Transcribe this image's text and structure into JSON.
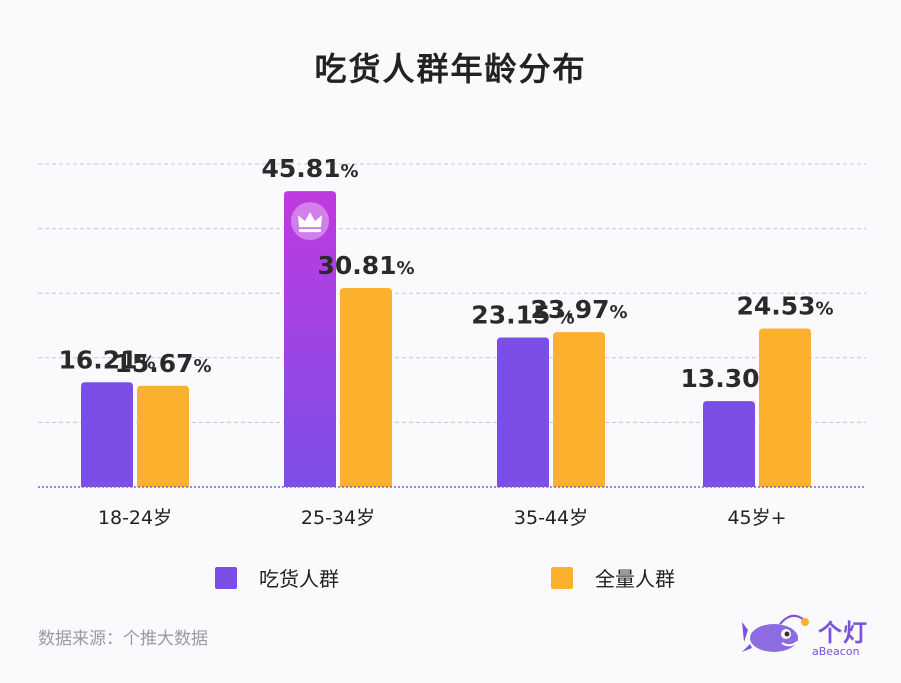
{
  "title": "吃货人群年龄分布",
  "source": "数据来源：个推大数据",
  "brand": {
    "logo_text": "个灯",
    "sub_text": "aBeacon"
  },
  "colors": {
    "series1": "#7b4fe6",
    "series2": "#fcb12e",
    "highlight_top": "#c03ae0",
    "grid": "#c9c2ea",
    "axis": "#7c62d6"
  },
  "chart_data": {
    "type": "bar",
    "title": "吃货人群年龄分布",
    "categories": [
      "18-24岁",
      "25-34岁",
      "35-44岁",
      "45岁+"
    ],
    "series": [
      {
        "name": "吃货人群",
        "values": [
          16.21,
          45.81,
          23.15,
          13.3
        ],
        "labels": [
          "16.21%",
          "45.81%",
          "23.15 %",
          "13.30%"
        ]
      },
      {
        "name": "全量人群",
        "values": [
          15.67,
          30.81,
          23.97,
          24.53
        ],
        "labels": [
          "15.67%",
          "30.81%",
          "23.97%",
          "24.53%"
        ]
      }
    ],
    "highlight": {
      "series": 0,
      "category": 1,
      "icon": "crown-icon"
    },
    "ylim": [
      0,
      50
    ],
    "grid": true,
    "legend": "bottom"
  }
}
